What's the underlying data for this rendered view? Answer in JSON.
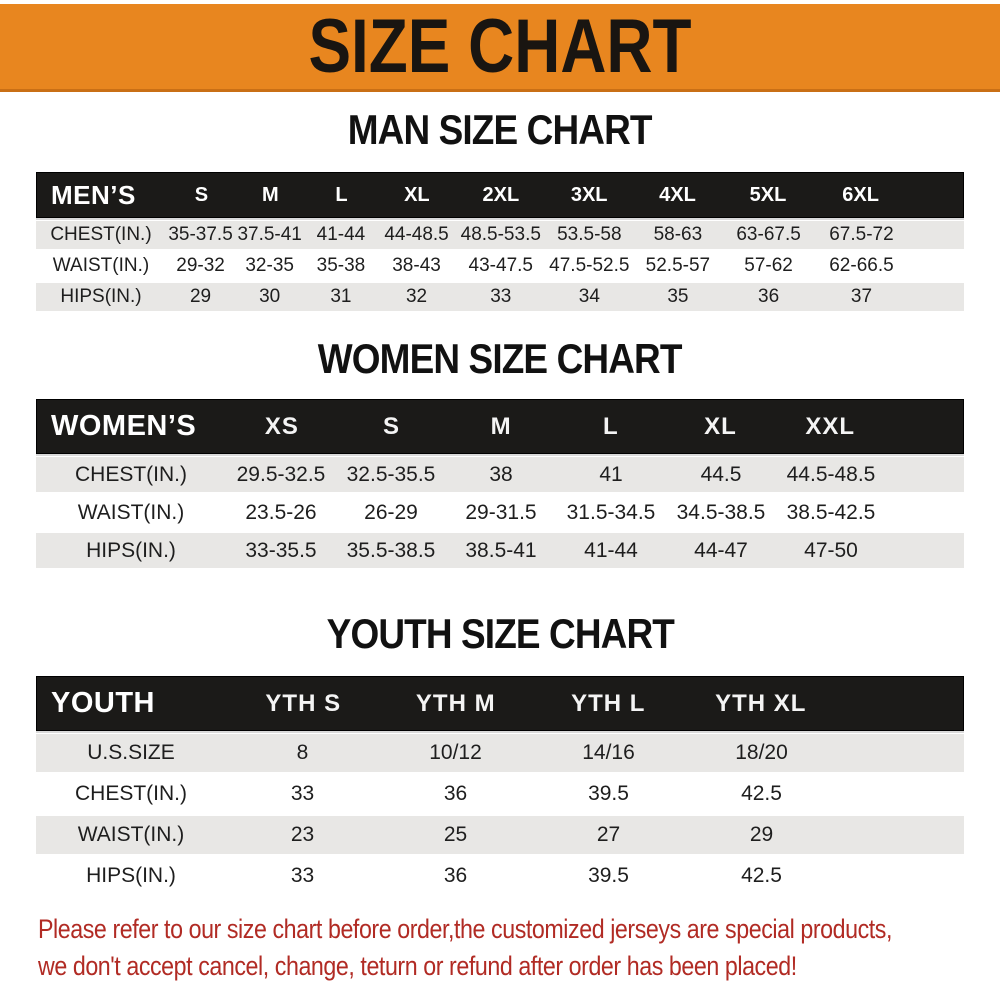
{
  "banner": {
    "title": "SIZE CHART"
  },
  "colors": {
    "banner_bg": "#E8861F",
    "header_bar": "#1B1A18",
    "row_stripe": "#E8E7E5",
    "note_red": "#B12B24"
  },
  "sections": [
    {
      "heading": "MAN SIZE CHART",
      "table": {
        "name": "MEN’S",
        "columns": [
          "S",
          "M",
          "L",
          "XL",
          "2XL",
          "3XL",
          "4XL",
          "5XL",
          "6XL"
        ],
        "rows": [
          {
            "label": "CHEST(IN.)",
            "values": [
              "35-37.5",
              "37.5-41",
              "41-44",
              "44-48.5",
              "48.5-53.5",
              "53.5-58",
              "58-63",
              "63-67.5",
              "67.5-72"
            ]
          },
          {
            "label": "WAIST(IN.)",
            "values": [
              "29-32",
              "32-35",
              "35-38",
              "38-43",
              "43-47.5",
              "47.5-52.5",
              "52.5-57",
              "57-62",
              "62-66.5"
            ]
          },
          {
            "label": "HIPS(IN.)",
            "values": [
              "29",
              "30",
              "31",
              "32",
              "33",
              "34",
              "35",
              "36",
              "37"
            ]
          }
        ]
      }
    },
    {
      "heading": "WOMEN SIZE CHART",
      "table": {
        "name": "WOMEN’S",
        "columns": [
          "XS",
          "S",
          "M",
          "L",
          "XL",
          "XXL"
        ],
        "rows": [
          {
            "label": "CHEST(IN.)",
            "values": [
              "29.5-32.5",
              "32.5-35.5",
              "38",
              "41",
              "44.5",
              "44.5-48.5"
            ]
          },
          {
            "label": "WAIST(IN.)",
            "values": [
              "23.5-26",
              "26-29",
              "29-31.5",
              "31.5-34.5",
              "34.5-38.5",
              "38.5-42.5"
            ]
          },
          {
            "label": "HIPS(IN.)",
            "values": [
              "33-35.5",
              "35.5-38.5",
              "38.5-41",
              "41-44",
              "44-47",
              "47-50"
            ]
          }
        ]
      }
    },
    {
      "heading": "YOUTH SIZE CHART",
      "table": {
        "name": "YOUTH",
        "columns": [
          "YTH S",
          "YTH M",
          "YTH L",
          "YTH XL"
        ],
        "rows": [
          {
            "label": "U.S.SIZE",
            "values": [
              "8",
              "10/12",
              "14/16",
              "18/20"
            ]
          },
          {
            "label": "CHEST(IN.)",
            "values": [
              "33",
              "36",
              "39.5",
              "42.5"
            ]
          },
          {
            "label": "WAIST(IN.)",
            "values": [
              "23",
              "25",
              "27",
              "29"
            ]
          },
          {
            "label": "HIPS(IN.)",
            "values": [
              "33",
              "36",
              "39.5",
              "42.5"
            ]
          }
        ]
      }
    }
  ],
  "footer": {
    "line1": "Please refer to our size chart before order,the customized jerseys are special products,",
    "line2": "we don't accept cancel, change, teturn or refund after order has been placed!"
  }
}
